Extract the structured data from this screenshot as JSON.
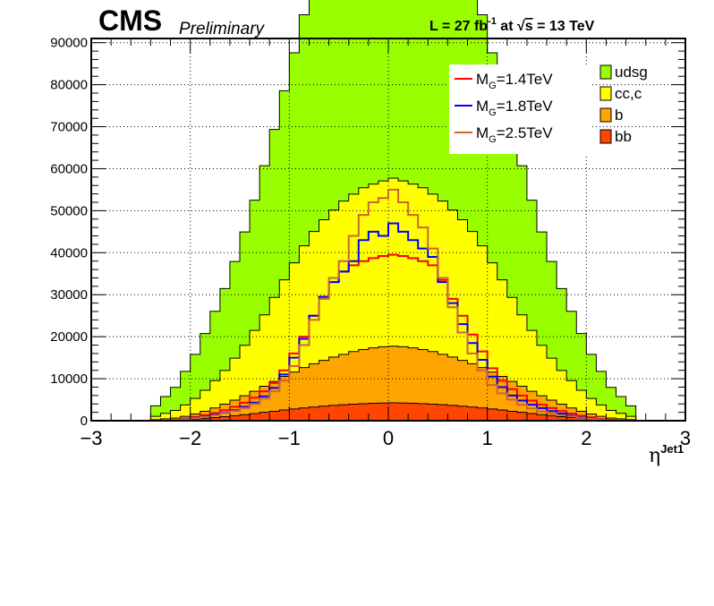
{
  "header": {
    "experiment": "CMS",
    "status": "Preliminary",
    "lumi_prefix": "L = 27 fb",
    "lumi_exp": "-1",
    "lumi_mid": " at  ",
    "sqrt_symbol": "√",
    "lumi_s": "s",
    "lumi_energy": " = 13 TeV"
  },
  "chart_data": {
    "type": "histogram",
    "x": {
      "label_base": "η",
      "label_sup": "Jet1",
      "min": -3,
      "max": 3,
      "ticks": [
        "−3",
        "−2",
        "−1",
        "0",
        "1",
        "2",
        "3"
      ],
      "tick_values": [
        -3,
        -2,
        -1,
        0,
        1,
        2,
        3
      ],
      "bins": 60
    },
    "y": {
      "min": 0,
      "max": 91000,
      "ticks": [
        "0",
        "10000",
        "20000",
        "30000",
        "40000",
        "50000",
        "60000",
        "70000",
        "80000",
        "90000"
      ],
      "tick_values": [
        0,
        10000,
        20000,
        30000,
        40000,
        50000,
        60000,
        70000,
        80000,
        90000
      ]
    },
    "grid": true,
    "stacked_series": [
      {
        "name": "udsg",
        "color": "#99ff00",
        "values": [
          0,
          0,
          0,
          0,
          0,
          0,
          2500,
          4000,
          5500,
          8000,
          10500,
          13500,
          16500,
          19500,
          23000,
          27000,
          31000,
          35500,
          40000,
          45000,
          50000,
          55000,
          60000,
          65000,
          70000,
          75000,
          79000,
          82000,
          84500,
          85500,
          86000,
          85500,
          84500,
          82000,
          79000,
          75000,
          70000,
          65000,
          60000,
          55000,
          50000,
          45000,
          40000,
          35500,
          31000,
          27000,
          23000,
          19500,
          16500,
          13500,
          10500,
          8000,
          5500,
          4000,
          2500,
          0,
          0,
          0,
          0,
          0
        ]
      },
      {
        "name": "cc,c",
        "color": "#ffff00",
        "values": [
          0,
          0,
          0,
          0,
          0,
          0,
          800,
          1300,
          1800,
          2700,
          3700,
          5000,
          6500,
          8000,
          10000,
          12000,
          14500,
          17000,
          20000,
          23000,
          26000,
          29000,
          31500,
          33500,
          35000,
          36500,
          37500,
          38500,
          39000,
          39500,
          40000,
          39500,
          39000,
          38500,
          37500,
          36500,
          35000,
          33500,
          31500,
          29000,
          26000,
          23000,
          20000,
          17000,
          14500,
          12000,
          10000,
          8000,
          6500,
          5000,
          3700,
          2700,
          1800,
          1300,
          800,
          0,
          0,
          0,
          0,
          0
        ]
      },
      {
        "name": "b",
        "color": "#ffa500",
        "values": [
          0,
          0,
          0,
          0,
          0,
          0,
          200,
          350,
          500,
          800,
          1200,
          1700,
          2300,
          3000,
          3700,
          4500,
          5300,
          6200,
          7100,
          8000,
          8800,
          9600,
          10300,
          10900,
          11500,
          12000,
          12500,
          12900,
          13200,
          13400,
          13500,
          13400,
          13200,
          12900,
          12500,
          12000,
          11500,
          10900,
          10300,
          9600,
          8800,
          8000,
          7100,
          6200,
          5300,
          4500,
          3700,
          3000,
          2300,
          1700,
          1200,
          800,
          500,
          350,
          200,
          0,
          0,
          0,
          0,
          0
        ]
      },
      {
        "name": "bb",
        "color": "#ff4500",
        "values": [
          0,
          0,
          0,
          0,
          0,
          0,
          50,
          100,
          150,
          250,
          400,
          550,
          750,
          950,
          1200,
          1450,
          1700,
          2000,
          2250,
          2550,
          2800,
          3050,
          3250,
          3450,
          3650,
          3800,
          3950,
          4050,
          4150,
          4200,
          4250,
          4200,
          4150,
          4050,
          3950,
          3800,
          3650,
          3450,
          3250,
          3050,
          2800,
          2550,
          2250,
          2000,
          1700,
          1450,
          1200,
          950,
          750,
          550,
          400,
          250,
          150,
          100,
          50,
          0,
          0,
          0,
          0,
          0
        ]
      }
    ],
    "signal_series": [
      {
        "name": "M_G=1.4TeV",
        "label_main": "M",
        "label_sub": "G",
        "label_rest": "=1.4TeV",
        "color": "#ff0000",
        "values": [
          0,
          0,
          0,
          0,
          0,
          0,
          0,
          0,
          200,
          500,
          900,
          1300,
          1800,
          2500,
          3300,
          4300,
          5500,
          7000,
          9000,
          12000,
          16000,
          20000,
          25000,
          29500,
          33000,
          35500,
          37000,
          38000,
          38700,
          39200,
          39500,
          39200,
          38700,
          38000,
          37000,
          33500,
          29000,
          25000,
          20500,
          16500,
          12500,
          9500,
          7500,
          6000,
          4800,
          3800,
          3000,
          2300,
          1700,
          1200,
          800,
          400,
          200,
          0,
          0,
          0,
          0,
          0,
          0,
          0
        ]
      },
      {
        "name": "M_G=1.8TeV",
        "label_main": "M",
        "label_sub": "G",
        "label_rest": "=1.8TeV",
        "color": "#0000ff",
        "values": [
          0,
          0,
          0,
          0,
          0,
          0,
          0,
          0,
          150,
          400,
          700,
          1000,
          1400,
          1900,
          2500,
          3300,
          4300,
          5800,
          7800,
          11000,
          15000,
          19500,
          25000,
          29500,
          33000,
          35500,
          38000,
          43000,
          45000,
          44000,
          47000,
          45000,
          43000,
          41000,
          39000,
          33000,
          28000,
          23000,
          18500,
          14500,
          10500,
          8000,
          6000,
          4800,
          3800,
          3000,
          2300,
          1700,
          1200,
          800,
          500,
          250,
          100,
          0,
          0,
          0,
          0,
          0,
          0,
          0
        ]
      },
      {
        "name": "M_G=2.5TeV",
        "label_main": "M",
        "label_sub": "G",
        "label_rest": "=2.5TeV",
        "color": "#cc6633",
        "values": [
          0,
          0,
          0,
          0,
          0,
          0,
          0,
          0,
          150,
          350,
          600,
          900,
          1300,
          1800,
          2300,
          3000,
          4000,
          5300,
          7000,
          9500,
          13000,
          18000,
          24000,
          29000,
          34000,
          38000,
          44000,
          49000,
          52000,
          53000,
          55000,
          52000,
          49000,
          46000,
          41000,
          34000,
          27000,
          21000,
          16000,
          12000,
          8500,
          6500,
          5000,
          3800,
          2900,
          2200,
          1700,
          1300,
          1000,
          700,
          450,
          250,
          100,
          0,
          0,
          0,
          0,
          0,
          0,
          0
        ]
      }
    ],
    "legend": {
      "placement": "top-right"
    }
  }
}
